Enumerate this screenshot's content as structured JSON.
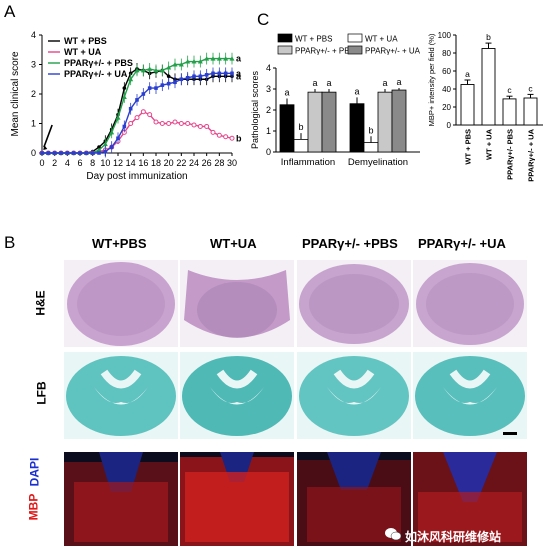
{
  "panels": {
    "a": "A",
    "b": "B",
    "c": "C"
  },
  "chart_data": [
    {
      "type": "line",
      "xlabel": "Day post immunization",
      "ylabel": "Mean clinical score",
      "x_ticks": [
        "0",
        "2",
        "4",
        "6",
        "8",
        "10",
        "12",
        "14",
        "16",
        "18",
        "20",
        "22",
        "24",
        "26",
        "28",
        "30"
      ],
      "y_ticks": [
        "0",
        "1",
        "2",
        "3",
        "4"
      ],
      "xlim": [
        0,
        30
      ],
      "ylim": [
        0,
        4
      ],
      "x": [
        0,
        1,
        2,
        3,
        4,
        5,
        6,
        7,
        8,
        9,
        10,
        11,
        12,
        13,
        14,
        15,
        16,
        17,
        18,
        19,
        20,
        21,
        22,
        23,
        24,
        25,
        26,
        27,
        28,
        29,
        30
      ],
      "series": [
        {
          "name": "WT + PBS",
          "color": "#000000",
          "marker": "circle",
          "values": [
            0,
            0,
            0,
            0,
            0,
            0,
            0,
            0,
            0.05,
            0.2,
            0.4,
            0.8,
            1.3,
            2.2,
            2.7,
            2.85,
            2.8,
            2.7,
            2.75,
            2.8,
            2.6,
            2.5,
            2.5,
            2.5,
            2.5,
            2.5,
            2.5,
            2.6,
            2.6,
            2.6,
            2.6
          ]
        },
        {
          "name": "WT + UA",
          "color": "#e8458b",
          "marker": "circle-open",
          "values": [
            0,
            0,
            0,
            0,
            0,
            0,
            0,
            0,
            0,
            0.05,
            0.1,
            0.2,
            0.4,
            0.7,
            1.0,
            1.2,
            1.4,
            1.3,
            1.05,
            1.0,
            1.0,
            1.05,
            1.0,
            1.0,
            0.95,
            0.9,
            0.9,
            0.7,
            0.6,
            0.55,
            0.5
          ]
        },
        {
          "name": "PPARγ+/- + PBS",
          "color": "#22a04a",
          "marker": "triangle",
          "values": [
            0,
            0,
            0,
            0,
            0,
            0,
            0,
            0,
            0,
            0.1,
            0.3,
            0.7,
            1.2,
            1.9,
            2.5,
            2.8,
            2.8,
            2.85,
            2.8,
            2.8,
            2.9,
            3.0,
            3.0,
            3.1,
            3.1,
            3.1,
            3.2,
            3.2,
            3.2,
            3.2,
            3.2
          ]
        },
        {
          "name": "PPARγ+/- + UA",
          "color": "#2a3fcf",
          "marker": "square",
          "values": [
            0,
            0,
            0,
            0,
            0,
            0,
            0,
            0,
            0,
            0,
            0.05,
            0.2,
            0.5,
            0.9,
            1.5,
            1.8,
            2.0,
            2.2,
            2.2,
            2.3,
            2.35,
            2.4,
            2.5,
            2.55,
            2.6,
            2.6,
            2.65,
            2.7,
            2.7,
            2.7,
            2.7
          ]
        }
      ],
      "end_letters": [
        {
          "text": "a",
          "series": 2
        },
        {
          "text": "a",
          "series": 3
        },
        {
          "text": "a",
          "series": 0
        },
        {
          "text": "b",
          "series": 1
        }
      ]
    },
    {
      "type": "bar",
      "ylabel": "Pathological scores",
      "y_ticks": [
        "0",
        "1",
        "2",
        "3",
        "4"
      ],
      "ylim": [
        0,
        4
      ],
      "categories": [
        "Inflammation",
        "Demyelination"
      ],
      "series": [
        {
          "name": "WT + PBS",
          "color": "#000000",
          "values": [
            2.25,
            2.3
          ],
          "errors": [
            0.3,
            0.3
          ],
          "letters": [
            "a",
            "a"
          ]
        },
        {
          "name": "WT + UA",
          "color": "#ffffff",
          "values": [
            0.6,
            0.45
          ],
          "errors": [
            0.3,
            0.3
          ],
          "letters": [
            "b",
            "b"
          ]
        },
        {
          "name": "PPARγ+/- + PBS",
          "color": "#c8c8c8",
          "values": [
            2.85,
            2.85
          ],
          "errors": [
            0.15,
            0.15
          ],
          "letters": [
            "a",
            "a"
          ]
        },
        {
          "name": "PPARγ+/- + UA",
          "color": "#8a8a8a",
          "values": [
            2.85,
            2.95
          ],
          "errors": [
            0.15,
            0.1
          ],
          "letters": [
            "a",
            "a"
          ]
        }
      ]
    },
    {
      "type": "bar",
      "ylabel": "MBP+ intensity per field (%)",
      "y_ticks": [
        "0",
        "20",
        "40",
        "60",
        "80",
        "100"
      ],
      "ylim": [
        0,
        100
      ],
      "categories": [
        "WT + PBS",
        "WT + UA",
        "PPARγ+/- PBS",
        "PPARγ+/- + UA"
      ],
      "values": [
        45,
        85,
        29,
        30
      ],
      "errors": [
        5,
        6,
        3,
        4
      ],
      "letters": [
        "a",
        "b",
        "c",
        "c"
      ]
    }
  ],
  "micrographs": {
    "columns": [
      "WT+PBS",
      "WT+UA",
      "PPARγ+/- +PBS",
      "PPARγ+/- +UA"
    ],
    "rows": [
      "H&E",
      "LFB",
      "DAPI",
      "MBP"
    ]
  },
  "watermark": "如沐风科研维修站"
}
